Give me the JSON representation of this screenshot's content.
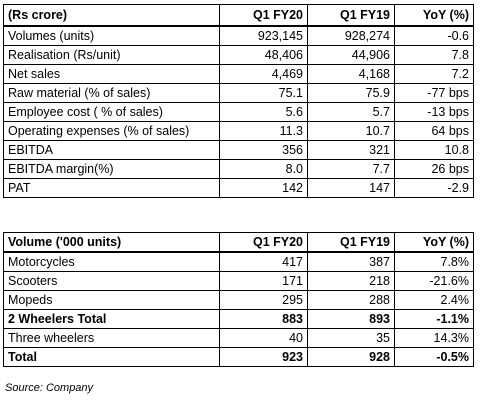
{
  "table1": {
    "headers": [
      "(Rs crore)",
      "Q1 FY20",
      "Q1 FY19",
      "YoY (%)"
    ],
    "rows": [
      {
        "label": "Volumes (units)",
        "q1fy20": "923,145",
        "q1fy19": "928,274",
        "yoy": "-0.6"
      },
      {
        "label": "Realisation (Rs/unit)",
        "q1fy20": "48,406",
        "q1fy19": "44,906",
        "yoy": "7.8"
      },
      {
        "label": "Net sales",
        "q1fy20": "4,469",
        "q1fy19": "4,168",
        "yoy": "7.2"
      },
      {
        "label": "Raw material (% of sales)",
        "q1fy20": "75.1",
        "q1fy19": "75.9",
        "yoy": "-77 bps"
      },
      {
        "label": "Employee cost ( % of sales)",
        "q1fy20": "5.6",
        "q1fy19": "5.7",
        "yoy": "-13 bps"
      },
      {
        "label": "Operating expenses (% of sales)",
        "q1fy20": "11.3",
        "q1fy19": "10.7",
        "yoy": "64 bps"
      },
      {
        "label": "EBITDA",
        "q1fy20": "356",
        "q1fy19": "321",
        "yoy": "10.8"
      },
      {
        "label": "EBITDA margin(%)",
        "q1fy20": "8.0",
        "q1fy19": "7.7",
        "yoy": "26 bps"
      },
      {
        "label": "PAT",
        "q1fy20": "142",
        "q1fy19": "147",
        "yoy": "-2.9"
      }
    ]
  },
  "table2": {
    "headers": [
      "Volume ('000 units)",
      "Q1 FY20",
      "Q1 FY19",
      "YoY (%)"
    ],
    "rows": [
      {
        "label": "Motorcycles",
        "q1fy20": "417",
        "q1fy19": "387",
        "yoy": "7.8%",
        "bold": false
      },
      {
        "label": "Scooters",
        "q1fy20": "171",
        "q1fy19": "218",
        "yoy": "-21.6%",
        "bold": false
      },
      {
        "label": "Mopeds",
        "q1fy20": "295",
        "q1fy19": "288",
        "yoy": "2.4%",
        "bold": false
      },
      {
        "label": "2 Wheelers Total",
        "q1fy20": "883",
        "q1fy19": "893",
        "yoy": "-1.1%",
        "bold": true
      },
      {
        "label": "Three wheelers",
        "q1fy20": "40",
        "q1fy19": "35",
        "yoy": "14.3%",
        "bold": false
      },
      {
        "label": "Total",
        "q1fy20": "923",
        "q1fy19": "928",
        "yoy": "-0.5%",
        "bold": true
      }
    ]
  },
  "source": "Source: Company"
}
